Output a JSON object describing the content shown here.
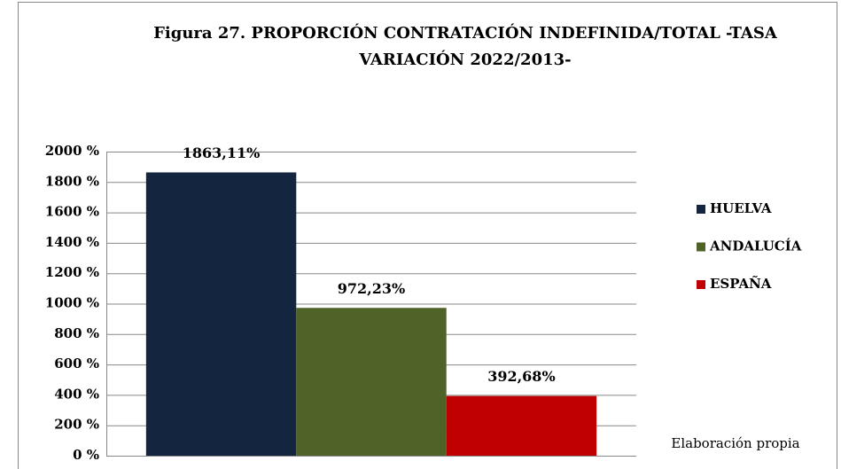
{
  "chart_data": {
    "type": "bar",
    "title": "Figura 27. PROPORCIÓN CONTRATACIÓN INDEFINIDA/TOTAL -TASA",
    "subtitle": "VARIACIÓN 2022/2013-",
    "categories": [
      null
    ],
    "series": [
      {
        "name": "HUELVA",
        "color": "#14253f",
        "values": [
          1863.11
        ],
        "value_labels": [
          "1863,11%"
        ]
      },
      {
        "name": "ANDALUCÍA",
        "color": "#4f6228",
        "values": [
          972.23
        ],
        "value_labels": [
          "972,23%"
        ]
      },
      {
        "name": "ESPAÑA",
        "color": "#c00000",
        "values": [
          392.68
        ],
        "value_labels": [
          "392,68%"
        ]
      }
    ],
    "ylim": [
      0,
      2000
    ],
    "yticks": [
      {
        "value": 0,
        "label": "0 %"
      },
      {
        "value": 200,
        "label": "200 %"
      },
      {
        "value": 400,
        "label": "400 %"
      },
      {
        "value": 600,
        "label": "600 %"
      },
      {
        "value": 800,
        "label": "800 %"
      },
      {
        "value": 1000,
        "label": "1000 %"
      },
      {
        "value": 1200,
        "label": "1200 %"
      },
      {
        "value": 1400,
        "label": "1400 %"
      },
      {
        "value": 1600,
        "label": "1600 %"
      },
      {
        "value": 1800,
        "label": "1800 %"
      },
      {
        "value": 2000,
        "label": "2000 %"
      }
    ],
    "grid": true,
    "legend": "right",
    "annotation": "Elaboración propia"
  }
}
